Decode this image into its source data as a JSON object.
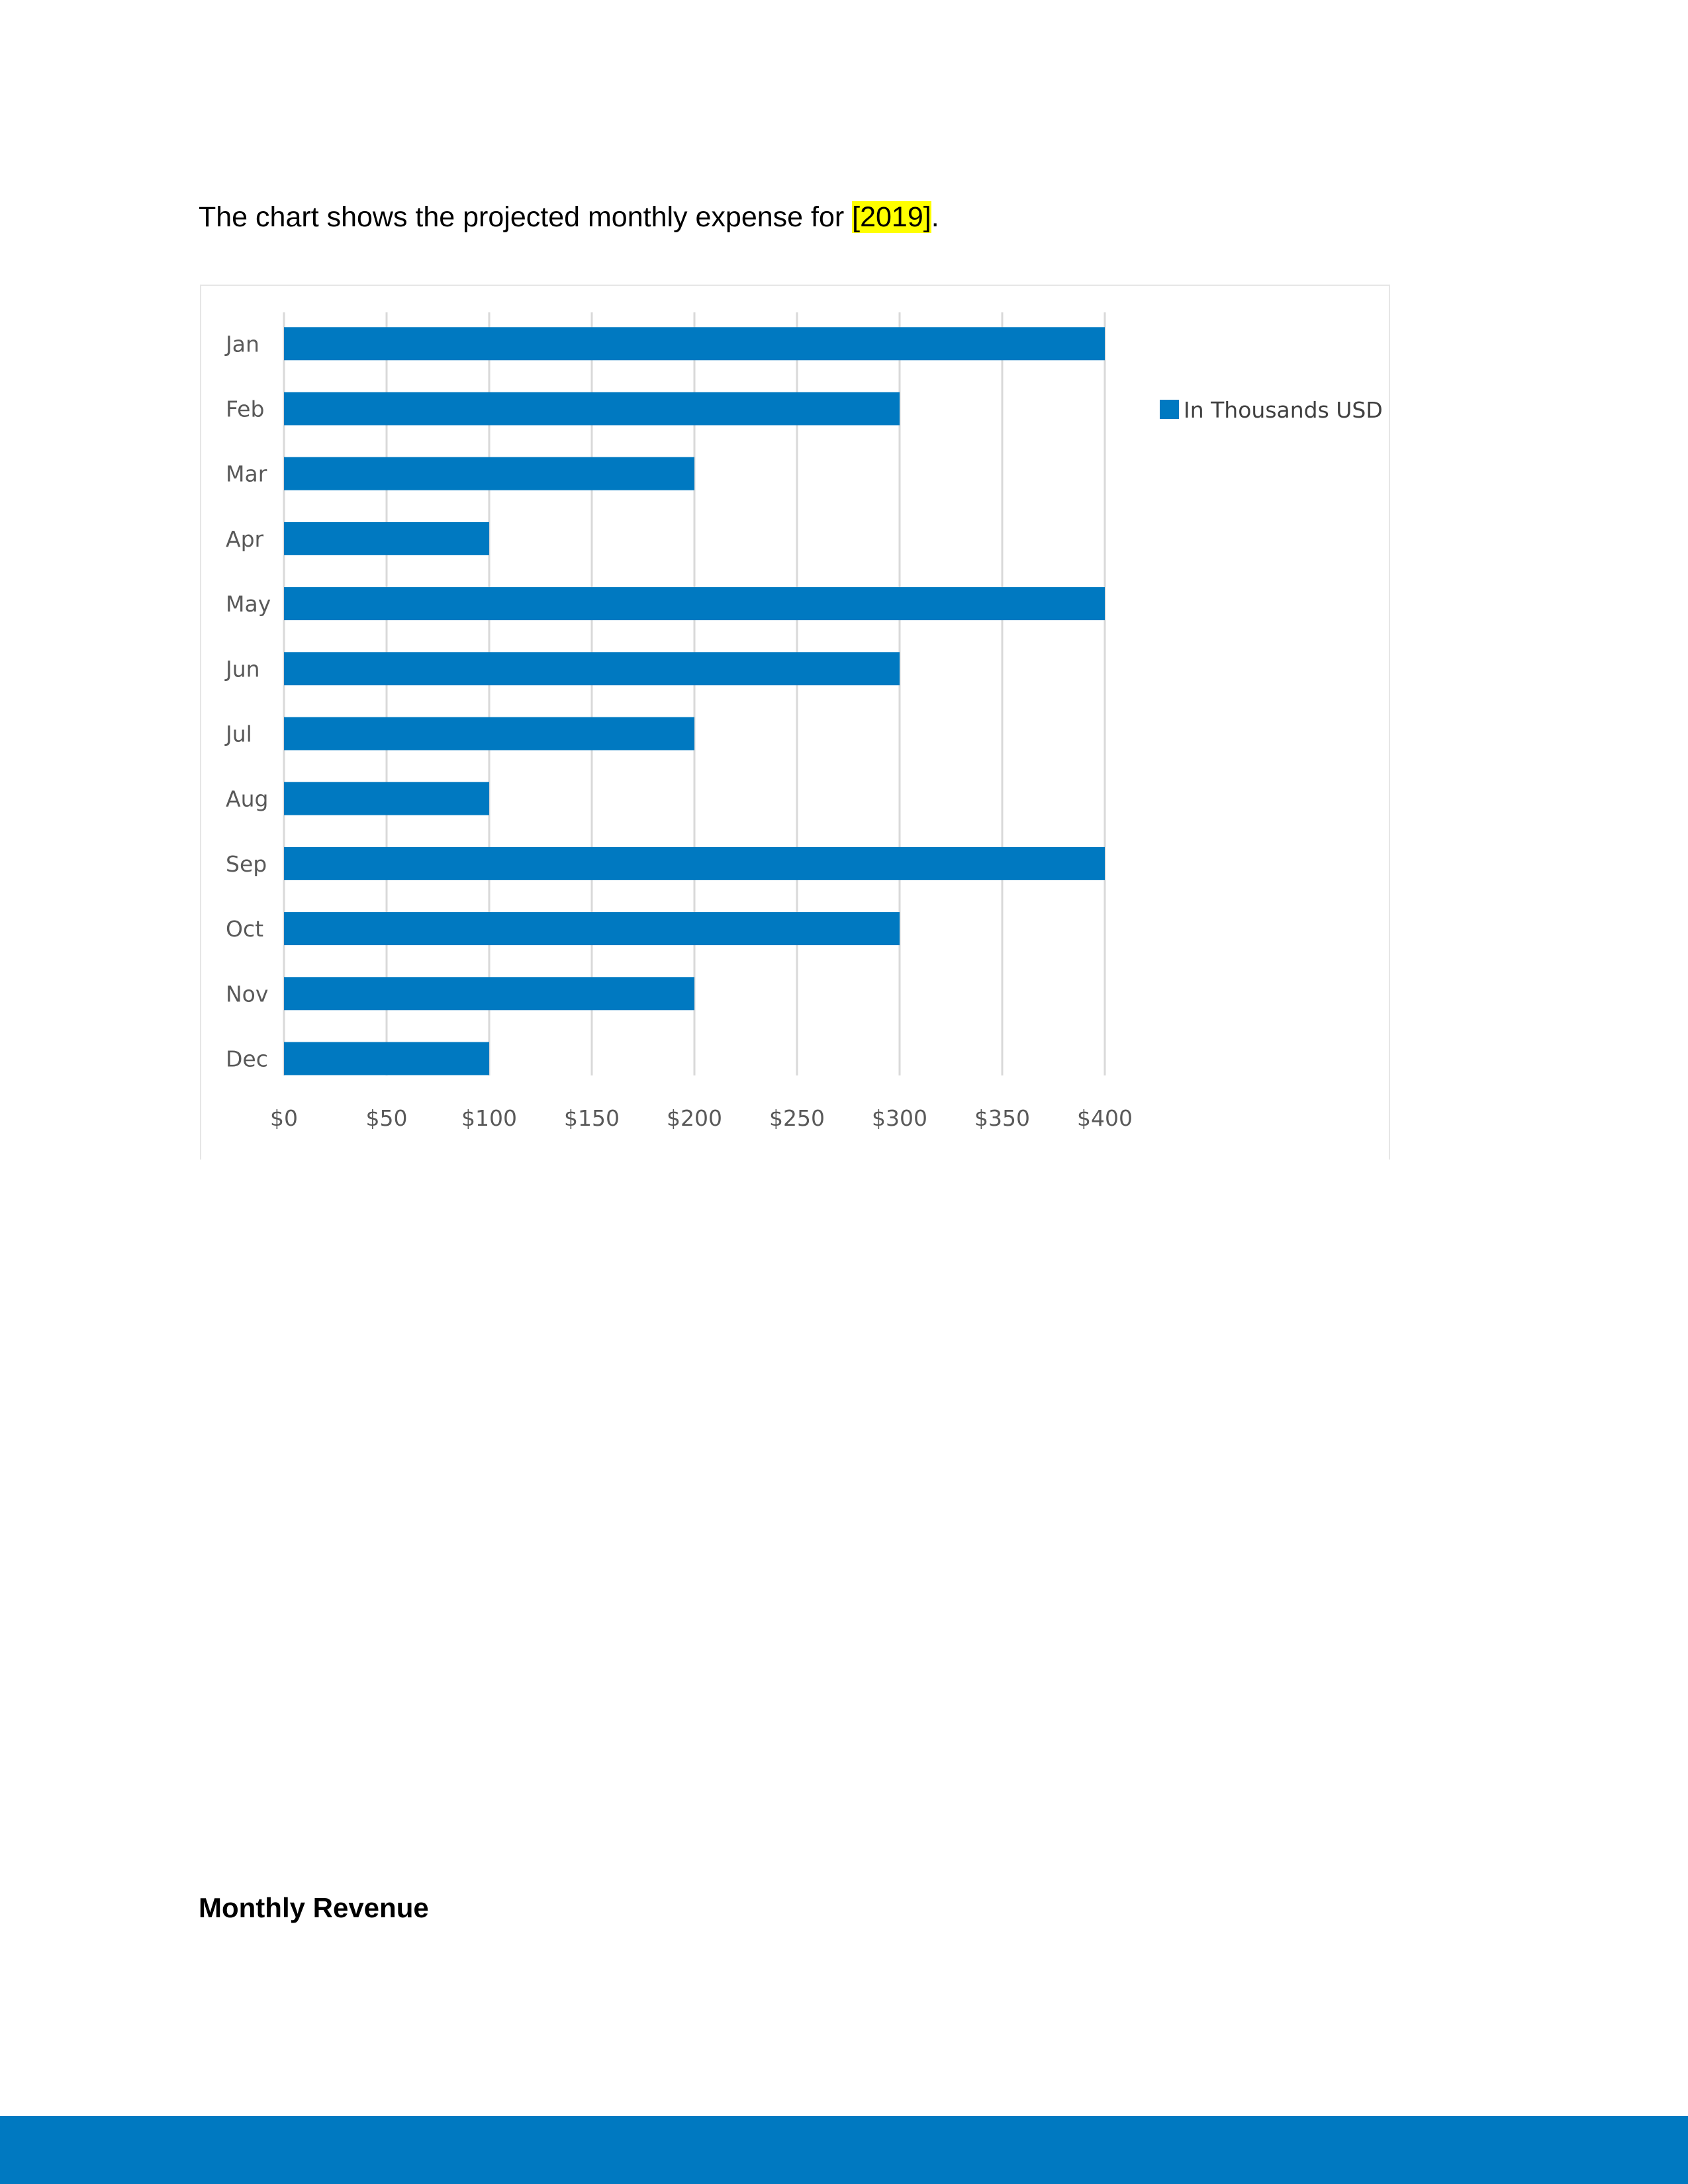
{
  "document": {
    "intro_before": "The chart shows the projected monthly expense for ",
    "intro_highlight": "[2019]",
    "intro_after": ".",
    "section_heading": "Monthly Revenue"
  },
  "colors": {
    "bar": "#0079c1",
    "highlight": "#ffff00",
    "footer": "#0079c1",
    "gridline": "#d9d9d9"
  },
  "chart_data": {
    "type": "bar",
    "orientation": "horizontal",
    "categories": [
      "Jan",
      "Feb",
      "Mar",
      "Apr",
      "May",
      "Jun",
      "Jul",
      "Aug",
      "Sep",
      "Oct",
      "Nov",
      "Dec"
    ],
    "series": [
      {
        "name": "In Thousands USD",
        "values": [
          400,
          300,
          200,
          100,
          400,
          300,
          200,
          100,
          400,
          300,
          200,
          100
        ]
      }
    ],
    "xticks": [
      "$0",
      "$50",
      "$100",
      "$150",
      "$200",
      "$250",
      "$300",
      "$350",
      "$400"
    ],
    "xlim": [
      0,
      400
    ],
    "grid": true,
    "legend_position": "right"
  }
}
